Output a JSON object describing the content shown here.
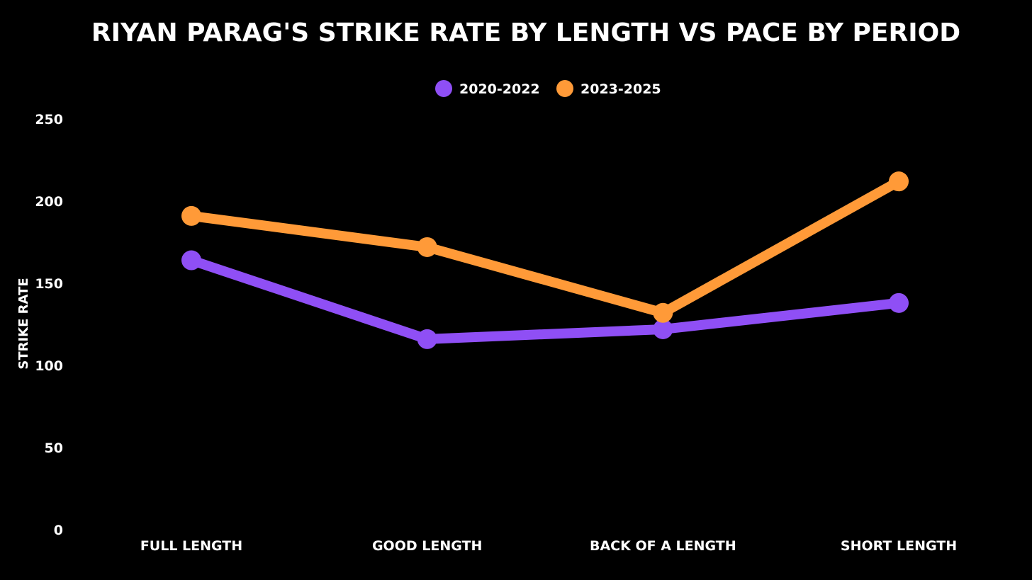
{
  "chart_data": {
    "type": "line",
    "title": "RIYAN PARAG'S STRIKE RATE BY LENGTH VS PACE BY PERIOD",
    "xlabel": "",
    "ylabel": "STRIKE RATE",
    "ylim": [
      0,
      250
    ],
    "yticks": [
      "0",
      "50",
      "100",
      "150",
      "200",
      "250"
    ],
    "grid": false,
    "legend_position": "top-center",
    "categories": [
      "FULL LENGTH",
      "GOOD LENGTH",
      "BACK OF A LENGTH",
      "SHORT LENGTH"
    ],
    "series": [
      {
        "name": "2020-2022",
        "color": "#8f4ff5",
        "values": [
          164,
          116,
          122,
          138
        ]
      },
      {
        "name": "2023-2025",
        "color": "#ff9a38",
        "values": [
          191,
          172,
          132,
          212
        ]
      }
    ]
  }
}
